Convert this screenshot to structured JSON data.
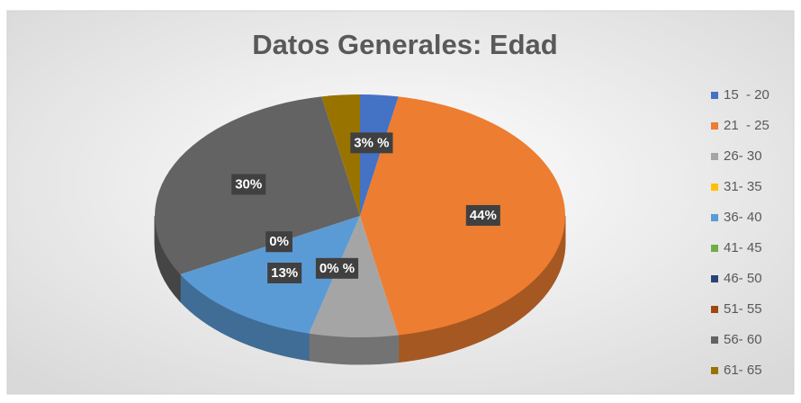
{
  "chart_data": {
    "type": "pie3d",
    "title": "Datos Generales: Edad",
    "categories": [
      "15  - 20",
      "21  - 25",
      "26- 30",
      "31- 35",
      "36- 40",
      "41- 45",
      "46- 50",
      "51- 55",
      "56- 60",
      "61- 65"
    ],
    "values": [
      3,
      44,
      7,
      0,
      13,
      0,
      0,
      0,
      30,
      3
    ],
    "value_labels": [
      "3% %",
      "44%",
      null,
      "0% %",
      "13%",
      "0%",
      null,
      null,
      "30%",
      null
    ],
    "colors": [
      "#4472c4",
      "#ed7d31",
      "#a5a5a5",
      "#ffc000",
      "#5b9bd5",
      "#70ad47",
      "#264478",
      "#9e480e",
      "#636363",
      "#997300"
    ],
    "legend": "right"
  }
}
